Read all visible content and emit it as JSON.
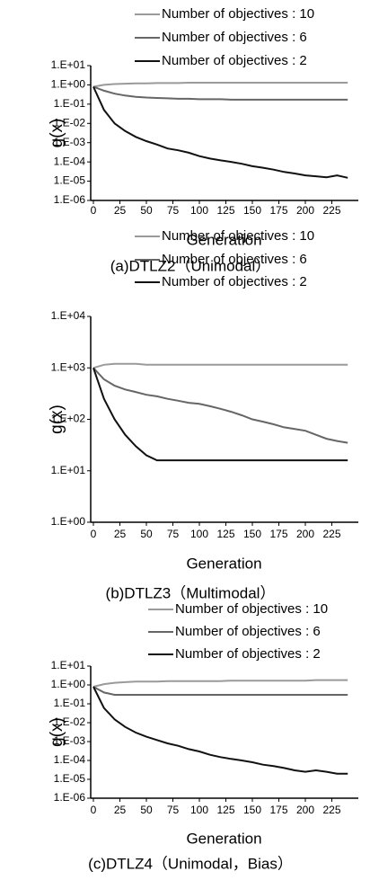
{
  "chart_data": [
    {
      "type": "line",
      "caption": "(a)DTLZ2（Unimodal）",
      "xlabel": "Generation",
      "ylabel": "g(x)",
      "log_y": true,
      "xlim": [
        0,
        250
      ],
      "xticks": [
        0,
        25,
        50,
        75,
        100,
        125,
        150,
        175,
        200,
        225
      ],
      "ylim": [
        1e-06,
        10
      ],
      "yticks": [
        {
          "value": 10,
          "label": "1.E+01"
        },
        {
          "value": 1,
          "label": "1.E+00"
        },
        {
          "value": 0.1,
          "label": "1.E-01"
        },
        {
          "value": 0.01,
          "label": "1.E-02"
        },
        {
          "value": 0.001,
          "label": "1.E-03"
        },
        {
          "value": 0.0001,
          "label": "1.E-04"
        },
        {
          "value": 1e-05,
          "label": "1.E-05"
        },
        {
          "value": 1e-06,
          "label": "1.E-06"
        }
      ],
      "x": [
        0,
        10,
        20,
        30,
        40,
        50,
        60,
        70,
        80,
        90,
        100,
        110,
        120,
        130,
        140,
        150,
        160,
        170,
        180,
        190,
        200,
        210,
        220,
        230,
        240
      ],
      "series": [
        {
          "name": "Number of objectives : 10",
          "color": "#9a9a9a",
          "values": [
            0.8,
            1.0,
            1.1,
            1.15,
            1.2,
            1.2,
            1.25,
            1.25,
            1.25,
            1.3,
            1.3,
            1.3,
            1.3,
            1.3,
            1.3,
            1.3,
            1.3,
            1.3,
            1.3,
            1.3,
            1.3,
            1.3,
            1.3,
            1.3,
            1.3
          ]
        },
        {
          "name": "Number of objectives : 6",
          "color": "#666666",
          "values": [
            0.8,
            0.5,
            0.35,
            0.28,
            0.24,
            0.22,
            0.21,
            0.2,
            0.19,
            0.19,
            0.18,
            0.18,
            0.18,
            0.17,
            0.17,
            0.17,
            0.17,
            0.17,
            0.17,
            0.17,
            0.17,
            0.17,
            0.17,
            0.17,
            0.17
          ]
        },
        {
          "name": "Number of objectives : 2",
          "color": "#111111",
          "values": [
            0.8,
            0.05,
            0.01,
            0.004,
            0.002,
            0.0012,
            0.0008,
            0.0005,
            0.0004,
            0.0003,
            0.0002,
            0.00015,
            0.00012,
            0.0001,
            8e-05,
            6e-05,
            5e-05,
            4e-05,
            3e-05,
            2.5e-05,
            2e-05,
            1.8e-05,
            1.6e-05,
            2e-05,
            1.5e-05
          ]
        }
      ]
    },
    {
      "type": "line",
      "caption": "(b)DTLZ3（Multimodal）",
      "xlabel": "Generation",
      "ylabel": "g(x)",
      "log_y": true,
      "xlim": [
        0,
        250
      ],
      "xticks": [
        0,
        25,
        50,
        75,
        100,
        125,
        150,
        175,
        200,
        225
      ],
      "ylim": [
        1,
        10000
      ],
      "yticks": [
        {
          "value": 10000,
          "label": "1.E+04"
        },
        {
          "value": 1000,
          "label": "1.E+03"
        },
        {
          "value": 100,
          "label": "1.E+02"
        },
        {
          "value": 10,
          "label": "1.E+01"
        },
        {
          "value": 1,
          "label": "1.E+00"
        }
      ],
      "x": [
        0,
        10,
        20,
        30,
        40,
        50,
        60,
        70,
        80,
        90,
        100,
        110,
        120,
        130,
        140,
        150,
        160,
        170,
        180,
        190,
        200,
        210,
        220,
        230,
        240
      ],
      "series": [
        {
          "name": "Number of objectives : 10",
          "color": "#9a9a9a",
          "values": [
            1000,
            1150,
            1200,
            1200,
            1200,
            1150,
            1150,
            1150,
            1150,
            1150,
            1150,
            1150,
            1150,
            1150,
            1150,
            1150,
            1150,
            1150,
            1150,
            1150,
            1150,
            1150,
            1150,
            1150,
            1150
          ]
        },
        {
          "name": "Number of objectives : 6",
          "color": "#666666",
          "values": [
            1000,
            600,
            450,
            380,
            340,
            300,
            280,
            250,
            230,
            210,
            200,
            180,
            160,
            140,
            120,
            100,
            90,
            80,
            70,
            65,
            60,
            50,
            42,
            38,
            35
          ]
        },
        {
          "name": "Number of objectives : 2",
          "color": "#111111",
          "values": [
            1000,
            250,
            100,
            50,
            30,
            20,
            16,
            16,
            16,
            16,
            16,
            16,
            16,
            16,
            16,
            16,
            16,
            16,
            16,
            16,
            16,
            16,
            16,
            16,
            16
          ]
        }
      ]
    },
    {
      "type": "line",
      "caption": "(c)DTLZ4（Unimodal，Bias）",
      "xlabel": "Generation",
      "ylabel": "g(x)",
      "log_y": true,
      "xlim": [
        0,
        250
      ],
      "xticks": [
        0,
        25,
        50,
        75,
        100,
        125,
        150,
        175,
        200,
        225
      ],
      "ylim": [
        1e-06,
        10
      ],
      "yticks": [
        {
          "value": 10,
          "label": "1.E+01"
        },
        {
          "value": 1,
          "label": "1.E+00"
        },
        {
          "value": 0.1,
          "label": "1.E-01"
        },
        {
          "value": 0.01,
          "label": "1.E-02"
        },
        {
          "value": 0.001,
          "label": "1.E-03"
        },
        {
          "value": 0.0001,
          "label": "1.E-04"
        },
        {
          "value": 1e-05,
          "label": "1.E-05"
        },
        {
          "value": 1e-06,
          "label": "1.E-06"
        }
      ],
      "x": [
        0,
        10,
        20,
        30,
        40,
        50,
        60,
        70,
        80,
        90,
        100,
        110,
        120,
        130,
        140,
        150,
        160,
        170,
        180,
        190,
        200,
        210,
        220,
        230,
        240
      ],
      "series": [
        {
          "name": "Number of objectives : 10",
          "color": "#9a9a9a",
          "values": [
            0.8,
            1.1,
            1.3,
            1.4,
            1.5,
            1.5,
            1.5,
            1.6,
            1.6,
            1.6,
            1.6,
            1.6,
            1.6,
            1.7,
            1.7,
            1.7,
            1.7,
            1.7,
            1.7,
            1.7,
            1.7,
            1.8,
            1.8,
            1.8,
            1.8
          ]
        },
        {
          "name": "Number of objectives : 6",
          "color": "#666666",
          "values": [
            0.8,
            0.4,
            0.3,
            0.3,
            0.3,
            0.3,
            0.3,
            0.3,
            0.3,
            0.3,
            0.3,
            0.3,
            0.3,
            0.3,
            0.3,
            0.3,
            0.3,
            0.3,
            0.3,
            0.3,
            0.3,
            0.3,
            0.3,
            0.3,
            0.3
          ]
        },
        {
          "name": "Number of objectives : 2",
          "color": "#111111",
          "values": [
            0.8,
            0.06,
            0.015,
            0.006,
            0.003,
            0.0018,
            0.0012,
            0.0008,
            0.0006,
            0.0004,
            0.0003,
            0.0002,
            0.00015,
            0.00012,
            0.0001,
            8e-05,
            6e-05,
            5e-05,
            4e-05,
            3e-05,
            2.5e-05,
            3e-05,
            2.5e-05,
            2e-05,
            2e-05
          ]
        }
      ]
    }
  ]
}
